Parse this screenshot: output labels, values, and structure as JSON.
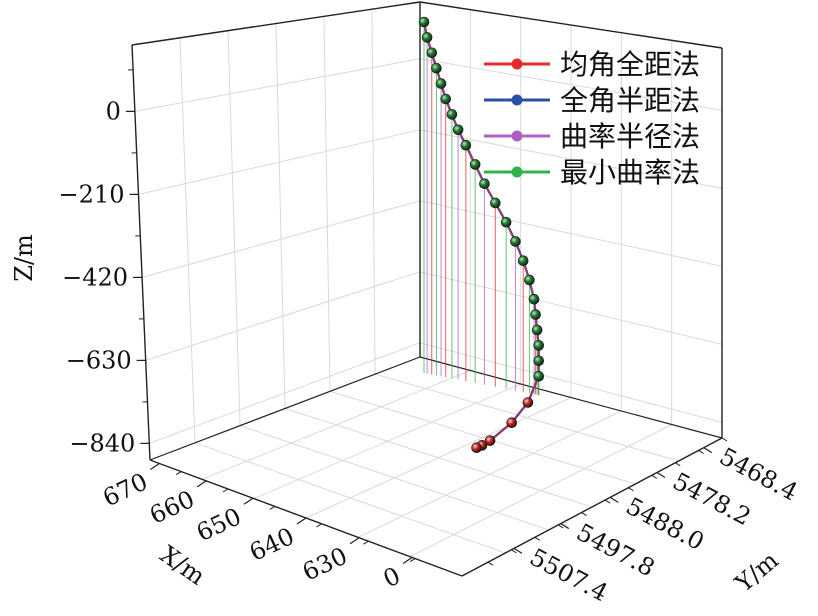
{
  "chart_data": {
    "type": "line",
    "title": "",
    "xlabel": "X/m",
    "ylabel": "Y/m",
    "zlabel": "Z/m",
    "z_ticks": [
      "0",
      "−210",
      "−420",
      "−630",
      "−840"
    ],
    "x_ticks": [
      "670",
      "660",
      "650",
      "640",
      "630",
      "0"
    ],
    "y_ticks": [
      "5468.4",
      "5478.2",
      "5488.0",
      "5497.8",
      "5507.4"
    ],
    "grid": true,
    "legend_position": "top-right",
    "colors": {
      "red": "#e8292a",
      "blue": "#2b4ea8",
      "purple": "#b05fc2",
      "green": "#2fb34a",
      "ball": "#2a7a3a"
    },
    "series": [
      {
        "name": "均角全距法",
        "color": "#e8292a"
      },
      {
        "name": "全角半距法",
        "color": "#2b4ea8"
      },
      {
        "name": "曲率半径法",
        "color": "#b05fc2"
      },
      {
        "name": "最小曲率法",
        "color": "#2fb34a"
      }
    ],
    "stations": [
      {
        "u": 0.0,
        "v": 0.0,
        "depth": -120
      },
      {
        "u": 0.0,
        "v": 0.02,
        "depth": -80
      },
      {
        "u": 0.0,
        "v": 0.05,
        "depth": -40
      },
      {
        "u": 0.0,
        "v": 0.08,
        "depth": 0
      },
      {
        "u": 0.0,
        "v": 0.11,
        "depth": 40
      },
      {
        "u": 0.0,
        "v": 0.14,
        "depth": 80
      },
      {
        "u": 0.0,
        "v": 0.18,
        "depth": 120
      },
      {
        "u": 0.0,
        "v": 0.22,
        "depth": 160
      },
      {
        "u": 0.0,
        "v": 0.27,
        "depth": 200
      },
      {
        "u": 0.0,
        "v": 0.33,
        "depth": 250
      },
      {
        "u": 0.0,
        "v": 0.39,
        "depth": 300
      },
      {
        "u": 0.0,
        "v": 0.46,
        "depth": 350
      },
      {
        "u": 0.0,
        "v": 0.53,
        "depth": 400
      },
      {
        "u": 0.0,
        "v": 0.59,
        "depth": 450
      },
      {
        "u": 0.0,
        "v": 0.64,
        "depth": 500
      },
      {
        "u": 0.0,
        "v": 0.68,
        "depth": 550
      },
      {
        "u": 0.0,
        "v": 0.71,
        "depth": 600
      },
      {
        "u": 0.0,
        "v": 0.72,
        "depth": 640
      },
      {
        "u": 0.0,
        "v": 0.73,
        "depth": 680
      },
      {
        "u": 0.0,
        "v": 0.74,
        "depth": 720
      },
      {
        "u": 0.0,
        "v": 0.74,
        "depth": 760
      },
      {
        "u": 0.0,
        "v": 0.74,
        "depth": 800
      },
      {
        "u": 0.04,
        "v": 0.74,
        "depth": 860
      },
      {
        "u": 0.1,
        "v": 0.74,
        "depth": 900
      },
      {
        "u": 0.18,
        "v": 0.74,
        "depth": 930
      },
      {
        "u": 0.21,
        "v": 0.74,
        "depth": 936
      },
      {
        "u": 0.23,
        "v": 0.74,
        "depth": 938
      }
    ]
  }
}
